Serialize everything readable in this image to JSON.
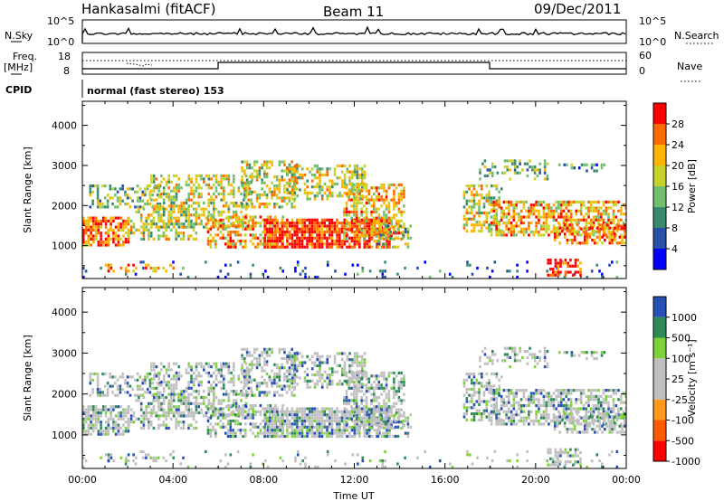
{
  "header": {
    "station": "Hankasalmi (fitACF)",
    "beam": "Beam 11",
    "date": "09/Dec/2011"
  },
  "noise_panel": {
    "left_label": "N.Sky",
    "right_label": "N.Search",
    "left_ticks": [
      "10^5",
      "10^0"
    ],
    "right_ticks": [
      "10^5",
      "10^0"
    ]
  },
  "freq_panel": {
    "left_label_line1": "Freq.",
    "left_label_line2": "[MHz]",
    "left_ticks": [
      "18",
      "8"
    ],
    "right_ticks": [
      "60",
      "0"
    ],
    "right_label": "Nave"
  },
  "cpid": {
    "label": "CPID",
    "mode": "normal (fast stereo) 153"
  },
  "colors": {
    "power_scale": [
      "#0000ff",
      "#2a4fa8",
      "#3b8a6e",
      "#6fbf6f",
      "#c8d22c",
      "#ffb400",
      "#ff6a00",
      "#ff0000"
    ],
    "velocity_scale": [
      "#ff0000",
      "#ff5a00",
      "#ff9a1e",
      "#bfbfbf",
      "#bfbfbf",
      "#7fd13b",
      "#2e8b57",
      "#2850b4"
    ]
  },
  "chart_data": [
    {
      "type": "heatmap",
      "title": "",
      "xlabel": "",
      "ylabel": "Slant Range [km]",
      "x_ticks": [
        "00:00",
        "04:00",
        "08:00",
        "12:00",
        "16:00",
        "20:00",
        "00:00"
      ],
      "y_ticks": [
        "1000",
        "2000",
        "3000",
        "4000"
      ],
      "ylim": [
        180,
        4600
      ],
      "colorbar": {
        "label": "Power [dB]",
        "ticks": [
          "4",
          "8",
          "12",
          "16",
          "20",
          "24",
          "28"
        ]
      }
    },
    {
      "type": "heatmap",
      "title": "",
      "xlabel": "Time UT",
      "ylabel": "Slant Range [km]",
      "x_ticks": [
        "00:00",
        "04:00",
        "08:00",
        "12:00",
        "16:00",
        "20:00",
        "00:00"
      ],
      "y_ticks": [
        "1000",
        "2000",
        "3000",
        "4000"
      ],
      "ylim": [
        180,
        4600
      ],
      "colorbar": {
        "label": "Velocity [m s⁻¹]",
        "ticks": [
          "1000",
          "500",
          "100",
          "25",
          "-25",
          "-100",
          "-500",
          "-1000"
        ]
      }
    }
  ]
}
